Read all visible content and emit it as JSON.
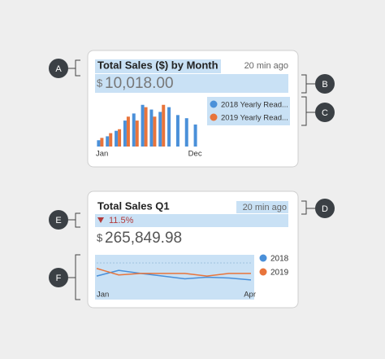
{
  "callouts": [
    "A",
    "B",
    "C",
    "D",
    "E",
    "F"
  ],
  "cards": [
    {
      "title": "Total Sales ($) by Month",
      "time": "20 min ago",
      "currency": "$",
      "amount": "10,018.00",
      "chart": {
        "type": "bar",
        "categories": [
          "Jan",
          null,
          null,
          null,
          null,
          null,
          null,
          null,
          null,
          null,
          null,
          "Dec"
        ],
        "series": [
          {
            "name": "2018 Yearly Read...",
            "color": "#4a90d9",
            "values": [
              8,
              13,
              20,
              33,
              42,
              53,
              47,
              44,
              50,
              40,
              36,
              28
            ]
          },
          {
            "name": "2019 Yearly Read...",
            "color": "#e8743b",
            "values": [
              11,
              17,
              22,
              38,
              33,
              50,
              38,
              53,
              null,
              null,
              null,
              null
            ]
          }
        ],
        "ylim": [
          0,
          60
        ]
      }
    },
    {
      "title": "Total Sales Q1",
      "time": "20 min ago",
      "change": "11.5%",
      "currency": "$",
      "amount": "265,849.98",
      "chart": {
        "type": "line",
        "categories": [
          "Jan",
          null,
          null,
          null,
          null,
          null,
          null,
          "Apr"
        ],
        "series": [
          {
            "name": "2018",
            "color": "#4a90d9",
            "values": [
              55,
              70,
              62,
              55,
              48,
              52,
              50,
              45
            ]
          },
          {
            "name": "2019",
            "color": "#e8743b",
            "values": [
              75,
              58,
              62,
              62,
              62,
              55,
              62,
              62
            ]
          }
        ],
        "ylim": [
          0,
          100
        ]
      }
    }
  ]
}
